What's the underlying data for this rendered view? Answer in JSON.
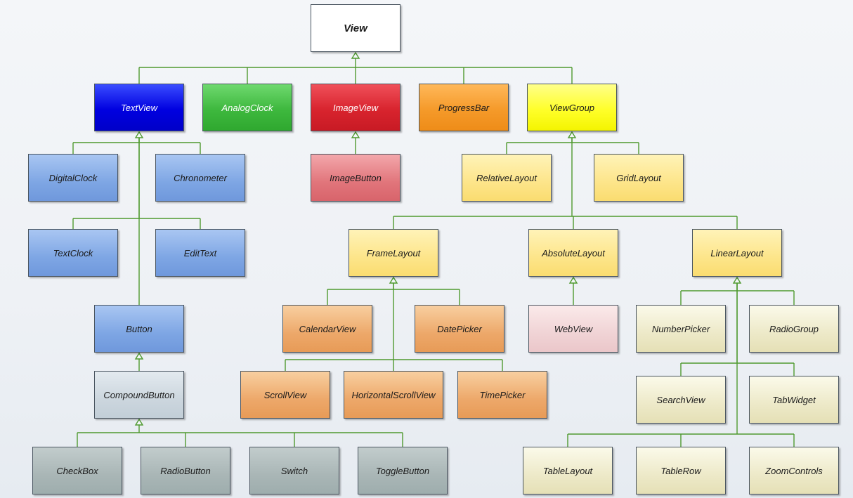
{
  "diagram": {
    "nodes": {
      "view": "View",
      "textview": "TextView",
      "analogclock": "AnalogClock",
      "imageview": "ImageView",
      "progressbar": "ProgressBar",
      "viewgroup": "ViewGroup",
      "digitalclock": "DigitalClock",
      "chronometer": "Chronometer",
      "imagebutton": "ImageButton",
      "relativelayout": "RelativeLayout",
      "gridlayout": "GridLayout",
      "textclock": "TextClock",
      "edittext": "EditText",
      "framelayout": "FrameLayout",
      "absolutelayout": "AbsoluteLayout",
      "linearlayout": "LinearLayout",
      "button": "Button",
      "calendarview": "CalendarView",
      "datepicker": "DatePicker",
      "webview": "WebView",
      "numberpicker": "NumberPicker",
      "radiogroup": "RadioGroup",
      "compoundbutton": "CompoundButton",
      "scrollview": "ScrollView",
      "horizontalscrollview": "HorizontalScrollView",
      "timepicker": "TimePicker",
      "searchview": "SearchView",
      "tabwidget": "TabWidget",
      "checkbox": "CheckBox",
      "radiobutton": "RadioButton",
      "switch": "Switch",
      "togglebutton": "ToggleButton",
      "tablelayout": "TableLayout",
      "tablerow": "TableRow",
      "zoomcontrols": "ZoomControls"
    },
    "connector_color": "#4f9a2f",
    "arrow_style": "hollow-triangle"
  }
}
